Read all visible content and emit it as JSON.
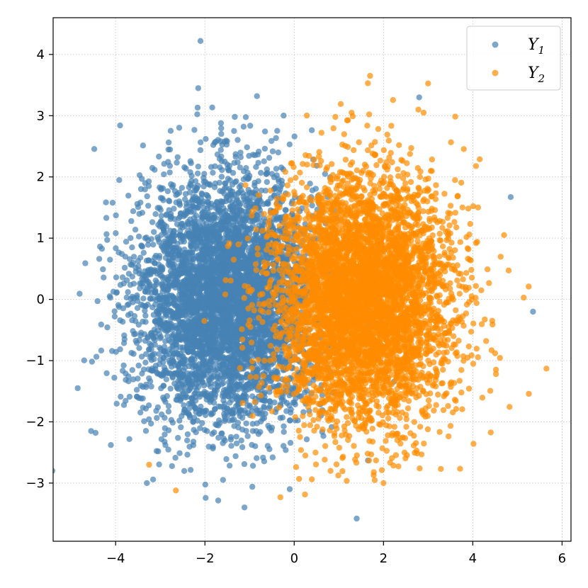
{
  "chart_data": {
    "type": "scatter",
    "title": "",
    "xlabel": "",
    "ylabel": "",
    "xlim": [
      -5.4,
      6.2
    ],
    "ylim": [
      -3.95,
      4.6
    ],
    "xticks": [
      -4,
      -2,
      0,
      2,
      4,
      6
    ],
    "yticks": [
      -3,
      -2,
      -1,
      0,
      1,
      2,
      3,
      4
    ],
    "xtick_labels": [
      "−4",
      "−2",
      "0",
      "2",
      "4",
      "6"
    ],
    "ytick_labels": [
      "−3",
      "−2",
      "−1",
      "0",
      "1",
      "2",
      "3",
      "4"
    ],
    "grid": true,
    "legend_position": "top-right",
    "series": [
      {
        "name": "Y",
        "subscript": "1",
        "color": "#4682B4",
        "alpha": 0.7,
        "distribution": {
          "n": 5000,
          "mean": [
            -1.5,
            0.0
          ],
          "std": [
            1.0,
            1.0
          ]
        },
        "outliers": [
          [
            -2.1,
            4.22
          ],
          [
            -2.15,
            3.45
          ],
          [
            -3.9,
            2.84
          ],
          [
            -4.85,
            -1.45
          ],
          [
            -4.55,
            -2.15
          ],
          [
            -4.45,
            -2.18
          ],
          [
            5.35,
            -0.2
          ],
          [
            4.85,
            1.67
          ],
          [
            1.4,
            -3.58
          ],
          [
            2.8,
            3.3
          ],
          [
            -3.3,
            -3.0
          ],
          [
            -0.1,
            -3.1
          ]
        ]
      },
      {
        "name": "Y",
        "subscript": "2",
        "color": "#FF8C00",
        "alpha": 0.7,
        "distribution": {
          "n": 5000,
          "mean": [
            1.5,
            0.0
          ],
          "std": [
            1.0,
            1.0
          ]
        },
        "outliers": [
          [
            5.65,
            -1.13
          ],
          [
            1.7,
            3.65
          ],
          [
            1.65,
            3.53
          ],
          [
            -2.65,
            -3.12
          ],
          [
            4.5,
            -0.88
          ],
          [
            4.7,
            1.05
          ],
          [
            2.0,
            -3.0
          ],
          [
            -3.25,
            -2.7
          ]
        ]
      }
    ]
  }
}
